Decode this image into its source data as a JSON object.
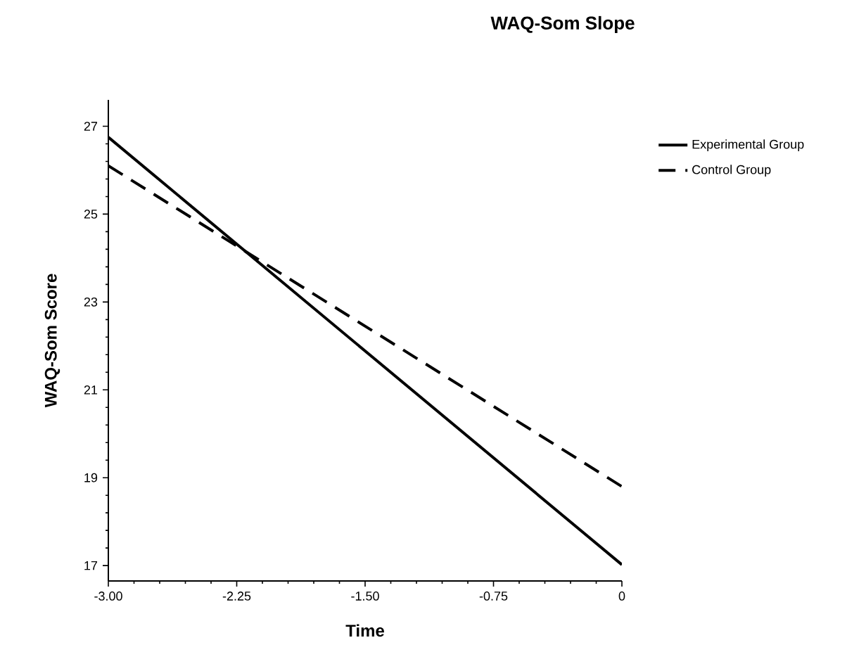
{
  "chart_data": {
    "type": "line",
    "title": "WAQ-Som Slope",
    "xlabel": "Time",
    "ylabel": "WAQ-Som Score",
    "x": [
      -3,
      0
    ],
    "series": [
      {
        "name": "Experimental Group",
        "color": "#000000",
        "line_style": "solid",
        "values": [
          26.75,
          17.02
        ]
      },
      {
        "name": "Control Group",
        "color": "#000000",
        "line_style": "dashed",
        "values": [
          26.1,
          18.8
        ]
      }
    ],
    "xlim": [
      -3,
      0
    ],
    "ylim": [
      16.65,
      27.6
    ],
    "xticks": [
      {
        "value": -3,
        "label": "-3.00"
      },
      {
        "value": -2.25,
        "label": "-2.25"
      },
      {
        "value": -1.5,
        "label": "-1.50"
      },
      {
        "value": -0.75,
        "label": "-0.75"
      },
      0
    ],
    "yticks": [
      17,
      19,
      21,
      23,
      25,
      27
    ],
    "grid": false,
    "legend": "right",
    "marker": "none"
  }
}
